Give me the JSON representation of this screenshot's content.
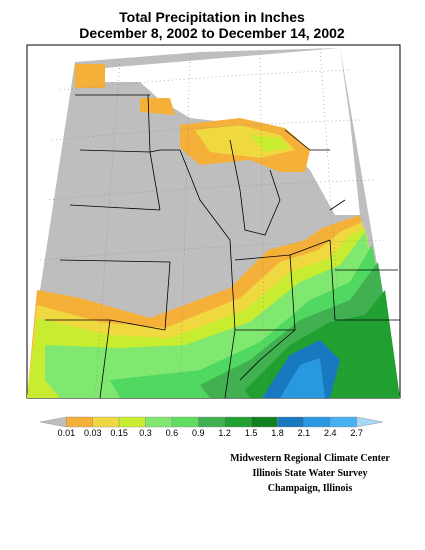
{
  "title": [
    "Total Precipitation in Inches",
    "December 8, 2002 to December 14, 2002"
  ],
  "legend": {
    "colors": [
      "#bebebe",
      "#f5b03a",
      "#f0d840",
      "#c8ec30",
      "#80e870",
      "#60dc60",
      "#40b050",
      "#20a030",
      "#108020",
      "#1878c0",
      "#2898e0",
      "#48b0f0",
      "#a8d8f8"
    ],
    "labels": [
      "0.01",
      "0.03",
      "0.15",
      "0.3",
      "0.6",
      "0.9",
      "1.2",
      "1.5",
      "1.8",
      "2.1",
      "2.4",
      "2.7"
    ]
  },
  "credits": [
    "Midwestern Regional Climate Center",
    "Illinois State Water Survey",
    "Champaign, Illinois"
  ]
}
